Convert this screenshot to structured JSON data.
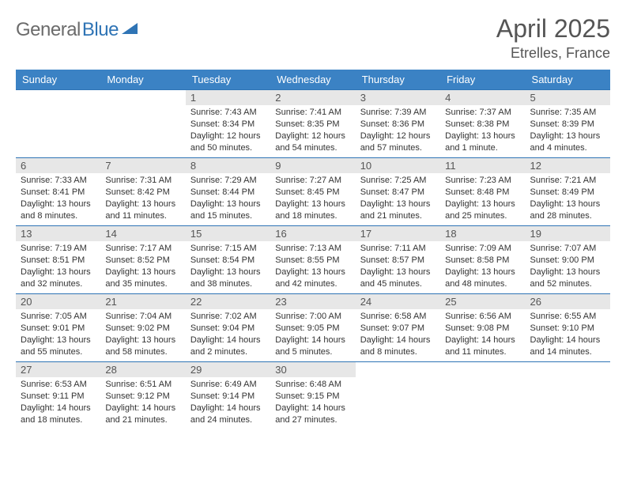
{
  "logo": {
    "text1": "General",
    "text2": "Blue"
  },
  "title": "April 2025",
  "location": "Etrelles, France",
  "dayHeaders": [
    "Sunday",
    "Monday",
    "Tuesday",
    "Wednesday",
    "Thursday",
    "Friday",
    "Saturday"
  ],
  "colors": {
    "header_bg": "#3b82c4",
    "header_text": "#ffffff",
    "daynum_bg": "#e7e7e7",
    "border": "#2f74b5",
    "logo_gray": "#6b6b6b",
    "logo_blue": "#2f74b5"
  },
  "weeks": [
    [
      {
        "n": "",
        "sr": "",
        "ss": "",
        "dl": ""
      },
      {
        "n": "",
        "sr": "",
        "ss": "",
        "dl": ""
      },
      {
        "n": "1",
        "sr": "Sunrise: 7:43 AM",
        "ss": "Sunset: 8:34 PM",
        "dl": "Daylight: 12 hours and 50 minutes."
      },
      {
        "n": "2",
        "sr": "Sunrise: 7:41 AM",
        "ss": "Sunset: 8:35 PM",
        "dl": "Daylight: 12 hours and 54 minutes."
      },
      {
        "n": "3",
        "sr": "Sunrise: 7:39 AM",
        "ss": "Sunset: 8:36 PM",
        "dl": "Daylight: 12 hours and 57 minutes."
      },
      {
        "n": "4",
        "sr": "Sunrise: 7:37 AM",
        "ss": "Sunset: 8:38 PM",
        "dl": "Daylight: 13 hours and 1 minute."
      },
      {
        "n": "5",
        "sr": "Sunrise: 7:35 AM",
        "ss": "Sunset: 8:39 PM",
        "dl": "Daylight: 13 hours and 4 minutes."
      }
    ],
    [
      {
        "n": "6",
        "sr": "Sunrise: 7:33 AM",
        "ss": "Sunset: 8:41 PM",
        "dl": "Daylight: 13 hours and 8 minutes."
      },
      {
        "n": "7",
        "sr": "Sunrise: 7:31 AM",
        "ss": "Sunset: 8:42 PM",
        "dl": "Daylight: 13 hours and 11 minutes."
      },
      {
        "n": "8",
        "sr": "Sunrise: 7:29 AM",
        "ss": "Sunset: 8:44 PM",
        "dl": "Daylight: 13 hours and 15 minutes."
      },
      {
        "n": "9",
        "sr": "Sunrise: 7:27 AM",
        "ss": "Sunset: 8:45 PM",
        "dl": "Daylight: 13 hours and 18 minutes."
      },
      {
        "n": "10",
        "sr": "Sunrise: 7:25 AM",
        "ss": "Sunset: 8:47 PM",
        "dl": "Daylight: 13 hours and 21 minutes."
      },
      {
        "n": "11",
        "sr": "Sunrise: 7:23 AM",
        "ss": "Sunset: 8:48 PM",
        "dl": "Daylight: 13 hours and 25 minutes."
      },
      {
        "n": "12",
        "sr": "Sunrise: 7:21 AM",
        "ss": "Sunset: 8:49 PM",
        "dl": "Daylight: 13 hours and 28 minutes."
      }
    ],
    [
      {
        "n": "13",
        "sr": "Sunrise: 7:19 AM",
        "ss": "Sunset: 8:51 PM",
        "dl": "Daylight: 13 hours and 32 minutes."
      },
      {
        "n": "14",
        "sr": "Sunrise: 7:17 AM",
        "ss": "Sunset: 8:52 PM",
        "dl": "Daylight: 13 hours and 35 minutes."
      },
      {
        "n": "15",
        "sr": "Sunrise: 7:15 AM",
        "ss": "Sunset: 8:54 PM",
        "dl": "Daylight: 13 hours and 38 minutes."
      },
      {
        "n": "16",
        "sr": "Sunrise: 7:13 AM",
        "ss": "Sunset: 8:55 PM",
        "dl": "Daylight: 13 hours and 42 minutes."
      },
      {
        "n": "17",
        "sr": "Sunrise: 7:11 AM",
        "ss": "Sunset: 8:57 PM",
        "dl": "Daylight: 13 hours and 45 minutes."
      },
      {
        "n": "18",
        "sr": "Sunrise: 7:09 AM",
        "ss": "Sunset: 8:58 PM",
        "dl": "Daylight: 13 hours and 48 minutes."
      },
      {
        "n": "19",
        "sr": "Sunrise: 7:07 AM",
        "ss": "Sunset: 9:00 PM",
        "dl": "Daylight: 13 hours and 52 minutes."
      }
    ],
    [
      {
        "n": "20",
        "sr": "Sunrise: 7:05 AM",
        "ss": "Sunset: 9:01 PM",
        "dl": "Daylight: 13 hours and 55 minutes."
      },
      {
        "n": "21",
        "sr": "Sunrise: 7:04 AM",
        "ss": "Sunset: 9:02 PM",
        "dl": "Daylight: 13 hours and 58 minutes."
      },
      {
        "n": "22",
        "sr": "Sunrise: 7:02 AM",
        "ss": "Sunset: 9:04 PM",
        "dl": "Daylight: 14 hours and 2 minutes."
      },
      {
        "n": "23",
        "sr": "Sunrise: 7:00 AM",
        "ss": "Sunset: 9:05 PM",
        "dl": "Daylight: 14 hours and 5 minutes."
      },
      {
        "n": "24",
        "sr": "Sunrise: 6:58 AM",
        "ss": "Sunset: 9:07 PM",
        "dl": "Daylight: 14 hours and 8 minutes."
      },
      {
        "n": "25",
        "sr": "Sunrise: 6:56 AM",
        "ss": "Sunset: 9:08 PM",
        "dl": "Daylight: 14 hours and 11 minutes."
      },
      {
        "n": "26",
        "sr": "Sunrise: 6:55 AM",
        "ss": "Sunset: 9:10 PM",
        "dl": "Daylight: 14 hours and 14 minutes."
      }
    ],
    [
      {
        "n": "27",
        "sr": "Sunrise: 6:53 AM",
        "ss": "Sunset: 9:11 PM",
        "dl": "Daylight: 14 hours and 18 minutes."
      },
      {
        "n": "28",
        "sr": "Sunrise: 6:51 AM",
        "ss": "Sunset: 9:12 PM",
        "dl": "Daylight: 14 hours and 21 minutes."
      },
      {
        "n": "29",
        "sr": "Sunrise: 6:49 AM",
        "ss": "Sunset: 9:14 PM",
        "dl": "Daylight: 14 hours and 24 minutes."
      },
      {
        "n": "30",
        "sr": "Sunrise: 6:48 AM",
        "ss": "Sunset: 9:15 PM",
        "dl": "Daylight: 14 hours and 27 minutes."
      },
      {
        "n": "",
        "sr": "",
        "ss": "",
        "dl": ""
      },
      {
        "n": "",
        "sr": "",
        "ss": "",
        "dl": ""
      },
      {
        "n": "",
        "sr": "",
        "ss": "",
        "dl": ""
      }
    ]
  ]
}
